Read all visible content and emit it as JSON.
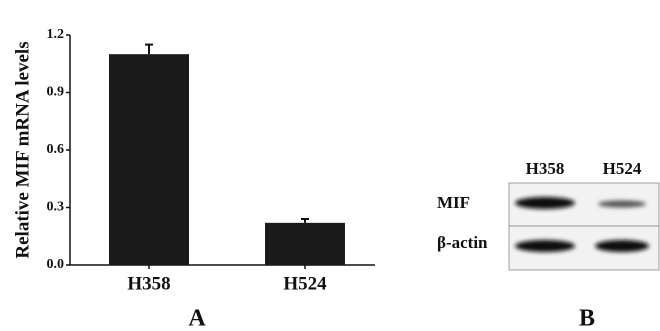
{
  "chart_data": {
    "type": "bar",
    "y_label": "Relative MIF mRNA levels",
    "categories": [
      "H358",
      "H524"
    ],
    "values": [
      1.1,
      0.22
    ],
    "errors": [
      0.05,
      0.02
    ],
    "color": "#1a1a1a",
    "ylim": [
      0,
      1.2
    ],
    "yticks": [
      {
        "value": 0,
        "label": "0.0"
      },
      0.3,
      0.6,
      0.9,
      1.2
    ]
  },
  "panels": [
    "A",
    "B"
  ],
  "blot": {
    "lanes": [
      "H358",
      "H524"
    ],
    "rows": [
      "MIF",
      "β-actin"
    ]
  }
}
